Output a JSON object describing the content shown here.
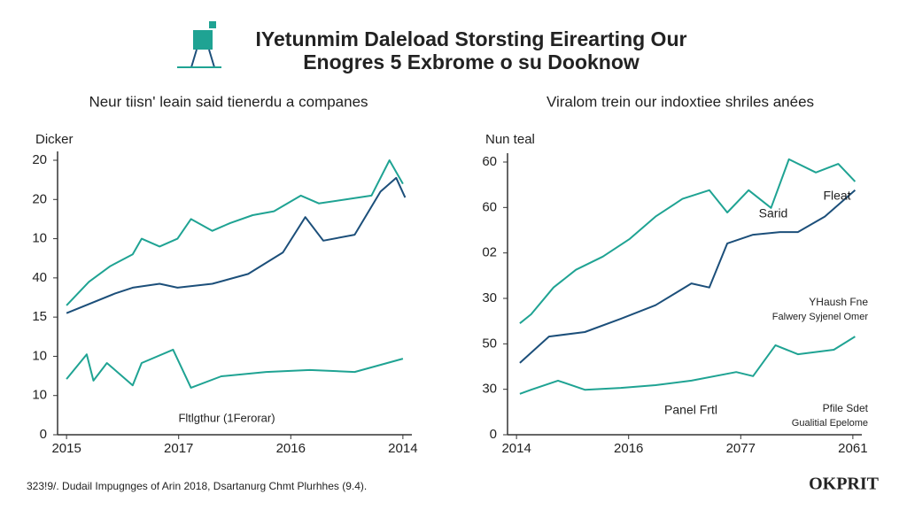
{
  "title": [
    "IYetunmim Daleload Storsting Eirearting Our",
    "Enogres 5 Exbrome o su Dooknow"
  ],
  "footer": "323!9/. Dudail Impugnges of Arin 2018, Dsartanurg Chmt Plurhhes (9.4).",
  "logo": "OKPRIT",
  "chart_data": [
    {
      "type": "line",
      "title": "Neur tiisn' leain said tienerdu a companes",
      "ylabel": "Dicker",
      "xlim": [
        -0.08,
        3.08
      ],
      "xticks": [
        {
          "value": 0,
          "label": "2015"
        },
        {
          "value": 1,
          "label": "2017"
        },
        {
          "value": 2,
          "label": "2016"
        },
        {
          "value": 3,
          "label": "2014"
        }
      ],
      "ylim": [
        0,
        7
      ],
      "yticks": [
        {
          "value": 0,
          "label": "0"
        },
        {
          "value": 1,
          "label": "10"
        },
        {
          "value": 2,
          "label": "10"
        },
        {
          "value": 3,
          "label": "15"
        },
        {
          "value": 4,
          "label": "40"
        },
        {
          "value": 5,
          "label": "10"
        },
        {
          "value": 6,
          "label": "20"
        },
        {
          "value": 7,
          "label": "20"
        }
      ],
      "annotations": [
        "Fltlgthur (1Ferorar)"
      ],
      "series": [
        {
          "color": "#1fa393",
          "x": [
            0,
            0.2,
            0.39,
            0.59,
            0.67,
            0.83,
            0.99,
            1.11,
            1.3,
            1.46,
            1.66,
            1.85,
            2.09,
            2.25,
            2.49,
            2.72,
            2.88,
            3
          ],
          "values": [
            3.3,
            3.9,
            4.3,
            4.6,
            5.0,
            4.8,
            5.0,
            5.5,
            5.2,
            5.4,
            5.6,
            5.7,
            6.1,
            5.9,
            6.0,
            6.1,
            7.0,
            6.4
          ]
        },
        {
          "color": "#1c4f7a",
          "x": [
            0,
            0.43,
            0.59,
            0.83,
            0.99,
            1.3,
            1.62,
            1.93,
            2.13,
            2.29,
            2.57,
            2.8,
            2.94,
            3.02
          ],
          "values": [
            3.1,
            3.6,
            3.75,
            3.85,
            3.75,
            3.85,
            4.1,
            4.65,
            5.55,
            4.95,
            5.1,
            6.2,
            6.55,
            6.05
          ]
        },
        {
          "color": "#1fa393",
          "x": [
            0,
            0.18,
            0.24,
            0.36,
            0.59,
            0.67,
            0.95,
            1.11,
            1.38,
            1.78,
            2.17,
            2.57,
            3
          ],
          "values": [
            1.42,
            2.05,
            1.38,
            1.83,
            1.26,
            1.83,
            2.17,
            1.2,
            1.49,
            1.6,
            1.65,
            1.6,
            1.94
          ]
        }
      ]
    },
    {
      "type": "line",
      "title": "Viralom trein our indoxtiee shriles anées",
      "ylabel": "Nun teal",
      "xlim": [
        -0.08,
        3.08
      ],
      "xticks": [
        {
          "value": 0,
          "label": "2014"
        },
        {
          "value": 1,
          "label": "2016"
        },
        {
          "value": 2,
          "label": "2077"
        },
        {
          "value": 3,
          "label": "2061"
        }
      ],
      "ylim": [
        0,
        6
      ],
      "yticks": [
        {
          "value": 0,
          "label": "0"
        },
        {
          "value": 1,
          "label": "30"
        },
        {
          "value": 2,
          "label": "50"
        },
        {
          "value": 3,
          "label": "30"
        },
        {
          "value": 4,
          "label": "02"
        },
        {
          "value": 5,
          "label": "60"
        },
        {
          "value": 6,
          "label": "60"
        }
      ],
      "annotations": [
        "Fleat",
        "Sarid",
        "YHaush Fne",
        "Falwery Syjenel Omer",
        "Pfile Sdet",
        "Gualitial Epelome",
        "Panel Frtl"
      ],
      "series": [
        {
          "color": "#1fa393",
          "x": [
            0.03,
            0.13,
            0.33,
            0.53,
            0.77,
            1.01,
            1.24,
            1.48,
            1.72,
            1.88,
            2.07,
            2.27,
            2.43,
            2.67,
            2.87,
            3.02
          ],
          "values": [
            2.45,
            2.65,
            3.24,
            3.63,
            3.92,
            4.31,
            4.8,
            5.19,
            5.38,
            4.89,
            5.38,
            4.99,
            6.06,
            5.77,
            5.96,
            5.57
          ]
        },
        {
          "color": "#1c4f7a",
          "x": [
            0.03,
            0.29,
            0.61,
            0.93,
            1.24,
            1.56,
            1.72,
            1.88,
            2.11,
            2.35,
            2.51,
            2.75,
            3.02
          ],
          "values": [
            1.58,
            2.16,
            2.26,
            2.55,
            2.85,
            3.33,
            3.24,
            4.21,
            4.4,
            4.46,
            4.46,
            4.8,
            5.38
          ]
        },
        {
          "color": "#1fa393",
          "x": [
            0.03,
            0.13,
            0.37,
            0.61,
            0.93,
            1.24,
            1.56,
            1.96,
            2.11,
            2.31,
            2.51,
            2.83,
            3.02
          ],
          "values": [
            0.9,
            0.99,
            1.19,
            0.99,
            1.03,
            1.09,
            1.19,
            1.38,
            1.29,
            1.97,
            1.77,
            1.87,
            2.16
          ]
        }
      ]
    }
  ]
}
